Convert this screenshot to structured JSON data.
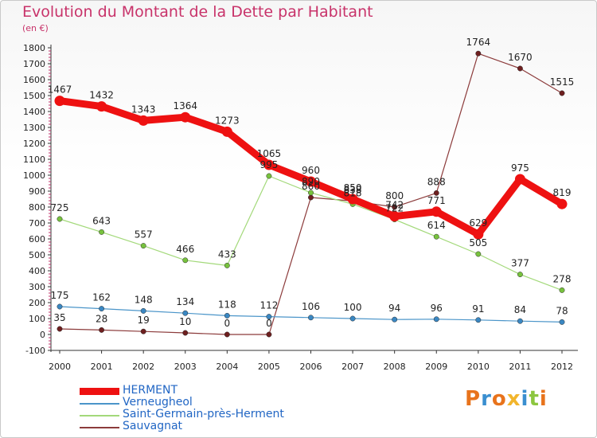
{
  "header": {
    "title": "Evolution du Montant de la Dette par Habitant",
    "subtitle": "(en €)"
  },
  "logo": {
    "text": "Proxiti",
    "colors": [
      "#e8731c",
      "#3a8fd0",
      "#e8731c",
      "#f2b52c",
      "#3a8fd0",
      "#8cc63f",
      "#e8731c"
    ]
  },
  "chart_data": {
    "type": "line",
    "x": [
      "2000",
      "2001",
      "2002",
      "2003",
      "2004",
      "2005",
      "2006",
      "2007",
      "2008",
      "2009",
      "2010",
      "2011",
      "2012"
    ],
    "ylim": [
      -100,
      1800
    ],
    "yticks": [
      -100,
      0,
      100,
      200,
      300,
      400,
      500,
      600,
      700,
      800,
      900,
      1000,
      1100,
      1200,
      1300,
      1400,
      1500,
      1600,
      1700,
      1800
    ],
    "grid": false,
    "legend_position": "bottom",
    "series": [
      {
        "name": "HERMENT",
        "color": "#ee1111",
        "line_width": 9,
        "point_color": "#ee1111",
        "values": [
          1467,
          1432,
          1343,
          1364,
          1273,
          1065,
          960,
          850,
          742,
          771,
          629,
          975,
          819
        ],
        "labels": [
          "1467",
          "1432",
          "1343",
          "1364",
          "1273",
          "1065",
          "960",
          "850",
          "742",
          "771",
          "629",
          "975",
          "819"
        ]
      },
      {
        "name": "Verneugheol",
        "color": "#4b95c9",
        "line_width": 1.2,
        "point_color": "#3a87c2",
        "values": [
          175,
          162,
          148,
          134,
          118,
          112,
          106,
          100,
          94,
          96,
          91,
          84,
          78
        ],
        "labels": [
          "175",
          "162",
          "148",
          "134",
          "118",
          "112",
          "106",
          "100",
          "94",
          "96",
          "91",
          "84",
          "78"
        ]
      },
      {
        "name": "Saint-Germain-près-Herment",
        "color": "#a3d97a",
        "line_width": 1.2,
        "point_color": "#77c23d",
        "values": [
          725,
          643,
          557,
          466,
          433,
          995,
          890,
          818,
          722,
          614,
          505,
          377,
          278
        ],
        "labels": [
          "725",
          "643",
          "557",
          "466",
          "433",
          "995",
          "890",
          "818",
          "722",
          "614",
          "505",
          "377",
          "278"
        ]
      },
      {
        "name": "Sauvagnat",
        "color": "#8c3b3b",
        "line_width": 1.2,
        "point_color": "#6e1f1f",
        "values": [
          35,
          28,
          19,
          10,
          0,
          0,
          860,
          838,
          800,
          888,
          1764,
          1670,
          1515
        ],
        "labels": [
          "35",
          "28",
          "19",
          "10",
          "0",
          "0",
          "860",
          "838",
          "800",
          "888",
          "1764",
          "1670",
          "1515"
        ]
      }
    ]
  }
}
